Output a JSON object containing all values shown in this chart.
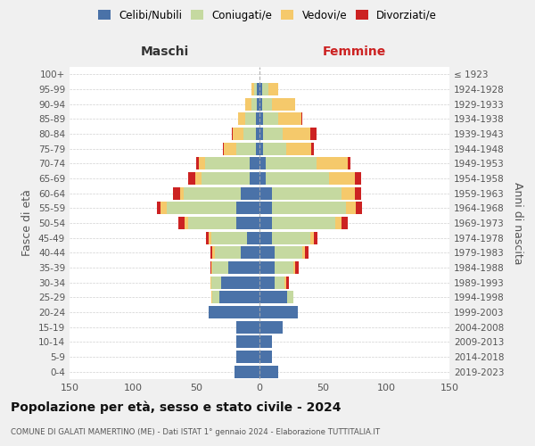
{
  "age_groups": [
    "0-4",
    "5-9",
    "10-14",
    "15-19",
    "20-24",
    "25-29",
    "30-34",
    "35-39",
    "40-44",
    "45-49",
    "50-54",
    "55-59",
    "60-64",
    "65-69",
    "70-74",
    "75-79",
    "80-84",
    "85-89",
    "90-94",
    "95-99",
    "100+"
  ],
  "birth_years": [
    "2019-2023",
    "2014-2018",
    "2009-2013",
    "2004-2008",
    "1999-2003",
    "1994-1998",
    "1989-1993",
    "1984-1988",
    "1979-1983",
    "1974-1978",
    "1969-1973",
    "1964-1968",
    "1959-1963",
    "1954-1958",
    "1949-1953",
    "1944-1948",
    "1939-1943",
    "1934-1938",
    "1929-1933",
    "1924-1928",
    "≤ 1923"
  ],
  "males": {
    "celibi": [
      20,
      18,
      18,
      18,
      40,
      32,
      30,
      25,
      15,
      10,
      18,
      18,
      15,
      8,
      8,
      3,
      3,
      3,
      2,
      2,
      0
    ],
    "coniugati": [
      0,
      0,
      0,
      0,
      0,
      5,
      8,
      12,
      20,
      28,
      38,
      55,
      45,
      38,
      35,
      15,
      10,
      8,
      4,
      2,
      0
    ],
    "vedovi": [
      0,
      0,
      0,
      0,
      0,
      1,
      1,
      1,
      2,
      2,
      3,
      5,
      3,
      5,
      5,
      10,
      8,
      6,
      5,
      2,
      0
    ],
    "divorziati": [
      0,
      0,
      0,
      0,
      0,
      0,
      0,
      1,
      2,
      2,
      5,
      3,
      5,
      5,
      2,
      1,
      1,
      0,
      0,
      0,
      0
    ]
  },
  "females": {
    "nubili": [
      15,
      10,
      10,
      18,
      30,
      22,
      12,
      12,
      12,
      10,
      10,
      10,
      10,
      5,
      5,
      3,
      3,
      3,
      2,
      2,
      0
    ],
    "coniugate": [
      0,
      0,
      0,
      0,
      0,
      5,
      8,
      15,
      22,
      30,
      50,
      58,
      55,
      50,
      40,
      18,
      15,
      12,
      8,
      5,
      0
    ],
    "vedove": [
      0,
      0,
      0,
      0,
      0,
      0,
      1,
      1,
      2,
      3,
      5,
      8,
      10,
      20,
      25,
      20,
      22,
      18,
      18,
      8,
      0
    ],
    "divorziate": [
      0,
      0,
      0,
      0,
      0,
      0,
      2,
      3,
      3,
      3,
      5,
      5,
      5,
      5,
      2,
      2,
      5,
      1,
      0,
      0,
      0
    ]
  },
  "colors": {
    "celibi_nubili": "#4a72a8",
    "coniugati": "#c5d9a0",
    "vedovi": "#f5c96b",
    "divorziati": "#cc2222"
  },
  "title": "Popolazione per età, sesso e stato civile - 2024",
  "subtitle": "COMUNE DI GALATI MAMERTINO (ME) - Dati ISTAT 1° gennaio 2024 - Elaborazione TUTTITALIA.IT",
  "xlabel_left": "Maschi",
  "xlabel_right": "Femmine",
  "ylabel_left": "Fasce di età",
  "ylabel_right": "Anni di nascita",
  "xlim": 150,
  "bg_color": "#f0f0f0",
  "plot_bg": "#ffffff",
  "grid_color": "#cccccc"
}
